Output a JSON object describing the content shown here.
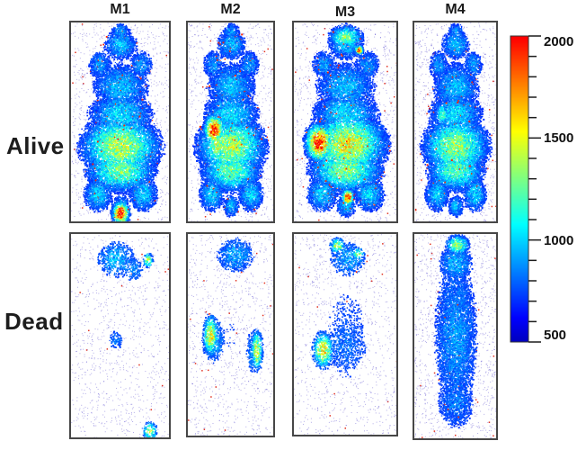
{
  "figure": {
    "columns": [
      "M1",
      "M2",
      "M3",
      "M4"
    ],
    "rows": [
      "Alive",
      "Dead"
    ]
  },
  "chart_data": {
    "type": "heatmap",
    "title": "",
    "description": "Whole-body speckled intensity heatmaps of four mice (M1-M4) imaged alive (top row, strong signal: blue body, green/yellow abdomen, red hotspots) and dead (bottom row, sparse blue speckle with small green foci), jet colormap",
    "colorbar": {
      "min": 500,
      "max": 2000,
      "major_ticks": [
        2000,
        1500,
        1000,
        500
      ],
      "minor_tick_step": 100,
      "labels": [
        "2000",
        "1500",
        "1000",
        "500"
      ],
      "colormap": "jet",
      "top_color": "#f42000",
      "bottom_color": "#1a1ae6"
    },
    "panels": [
      {
        "id": "alive-m1",
        "row": "Alive",
        "col": "M1",
        "dots": 26000,
        "threshold": 0.13,
        "bg_speck": 0.05,
        "red_speck": 0.0012,
        "hot_speck": 0.012,
        "fields": [
          [
            0.5,
            0.045,
            0.11,
            0.05,
            0.26
          ],
          [
            0.5,
            0.11,
            0.18,
            0.08,
            0.3
          ],
          [
            0.29,
            0.21,
            0.13,
            0.08,
            0.26
          ],
          [
            0.71,
            0.21,
            0.13,
            0.08,
            0.26
          ],
          [
            0.5,
            0.32,
            0.3,
            0.13,
            0.3
          ],
          [
            0.5,
            0.46,
            0.33,
            0.12,
            0.34
          ],
          [
            0.27,
            0.86,
            0.15,
            0.09,
            0.33
          ],
          [
            0.73,
            0.86,
            0.15,
            0.09,
            0.33
          ],
          [
            0.5,
            0.92,
            0.1,
            0.06,
            0.3
          ],
          [
            0.5,
            0.62,
            0.36,
            0.14,
            0.6
          ],
          [
            0.5,
            0.74,
            0.32,
            0.1,
            0.52
          ],
          [
            0.5,
            0.955,
            0.075,
            0.05,
            1.0
          ]
        ]
      },
      {
        "id": "alive-m2",
        "row": "Alive",
        "col": "M2",
        "dots": 24000,
        "threshold": 0.13,
        "bg_speck": 0.05,
        "red_speck": 0.0012,
        "hot_speck": 0.012,
        "fields": [
          [
            0.5,
            0.045,
            0.11,
            0.05,
            0.26
          ],
          [
            0.5,
            0.11,
            0.18,
            0.08,
            0.3
          ],
          [
            0.29,
            0.21,
            0.13,
            0.08,
            0.26
          ],
          [
            0.71,
            0.21,
            0.13,
            0.08,
            0.26
          ],
          [
            0.5,
            0.32,
            0.3,
            0.13,
            0.3
          ],
          [
            0.5,
            0.46,
            0.33,
            0.12,
            0.34
          ],
          [
            0.27,
            0.86,
            0.15,
            0.09,
            0.33
          ],
          [
            0.73,
            0.86,
            0.15,
            0.09,
            0.33
          ],
          [
            0.5,
            0.92,
            0.1,
            0.06,
            0.3
          ],
          [
            0.5,
            0.62,
            0.36,
            0.14,
            0.58
          ],
          [
            0.5,
            0.74,
            0.32,
            0.1,
            0.5
          ],
          [
            0.3,
            0.535,
            0.1,
            0.065,
            1.0
          ],
          [
            0.34,
            0.61,
            0.13,
            0.09,
            0.62
          ]
        ]
      },
      {
        "id": "alive-m3",
        "row": "Alive",
        "col": "M3",
        "dots": 28000,
        "threshold": 0.13,
        "bg_speck": 0.05,
        "red_speck": 0.0015,
        "hot_speck": 0.016,
        "fields": [
          [
            0.5,
            0.045,
            0.11,
            0.05,
            0.26
          ],
          [
            0.5,
            0.11,
            0.18,
            0.08,
            0.3
          ],
          [
            0.29,
            0.21,
            0.13,
            0.08,
            0.26
          ],
          [
            0.71,
            0.21,
            0.13,
            0.08,
            0.26
          ],
          [
            0.5,
            0.32,
            0.3,
            0.13,
            0.3
          ],
          [
            0.5,
            0.46,
            0.33,
            0.12,
            0.34
          ],
          [
            0.27,
            0.86,
            0.15,
            0.09,
            0.33
          ],
          [
            0.73,
            0.86,
            0.15,
            0.09,
            0.33
          ],
          [
            0.5,
            0.92,
            0.1,
            0.06,
            0.3
          ],
          [
            0.52,
            0.61,
            0.33,
            0.145,
            0.66
          ],
          [
            0.5,
            0.74,
            0.32,
            0.1,
            0.55
          ],
          [
            0.24,
            0.6,
            0.115,
            0.08,
            1.0
          ],
          [
            0.52,
            0.875,
            0.05,
            0.035,
            1.0
          ],
          [
            0.5,
            0.07,
            0.15,
            0.055,
            0.52
          ],
          [
            0.63,
            0.135,
            0.035,
            0.02,
            1.0
          ]
        ]
      },
      {
        "id": "alive-m4",
        "row": "Alive",
        "col": "M4",
        "dots": 23000,
        "threshold": 0.13,
        "bg_speck": 0.05,
        "red_speck": 0.0012,
        "hot_speck": 0.01,
        "fields": [
          [
            0.5,
            0.045,
            0.11,
            0.05,
            0.26
          ],
          [
            0.5,
            0.11,
            0.18,
            0.08,
            0.3
          ],
          [
            0.29,
            0.21,
            0.13,
            0.08,
            0.26
          ],
          [
            0.71,
            0.21,
            0.13,
            0.08,
            0.26
          ],
          [
            0.5,
            0.32,
            0.3,
            0.13,
            0.3
          ],
          [
            0.5,
            0.46,
            0.33,
            0.12,
            0.34
          ],
          [
            0.27,
            0.86,
            0.15,
            0.09,
            0.33
          ],
          [
            0.73,
            0.86,
            0.15,
            0.09,
            0.33
          ],
          [
            0.5,
            0.92,
            0.1,
            0.06,
            0.3
          ],
          [
            0.5,
            0.62,
            0.36,
            0.14,
            0.56
          ],
          [
            0.5,
            0.74,
            0.32,
            0.1,
            0.48
          ],
          [
            0.33,
            0.46,
            0.07,
            0.05,
            0.5
          ]
        ]
      },
      {
        "id": "dead-m1",
        "row": "Dead",
        "col": "M1",
        "dots": 14000,
        "threshold": 0.15,
        "bg_speck": 0.07,
        "red_speck": 0.0012,
        "hot_speck": 0.002,
        "fields": [
          [
            0.45,
            0.12,
            0.22,
            0.1,
            0.3
          ],
          [
            0.63,
            0.17,
            0.12,
            0.07,
            0.26
          ],
          [
            0.78,
            0.125,
            0.05,
            0.035,
            0.58
          ],
          [
            0.5,
            0.5,
            0.38,
            0.42,
            0.11
          ],
          [
            0.45,
            0.52,
            0.1,
            0.06,
            0.22
          ],
          [
            0.8,
            0.965,
            0.07,
            0.04,
            0.6
          ]
        ]
      },
      {
        "id": "dead-m2",
        "row": "Dead",
        "col": "M2",
        "dots": 15000,
        "threshold": 0.15,
        "bg_speck": 0.07,
        "red_speck": 0.0012,
        "hot_speck": 0.002,
        "fields": [
          [
            0.55,
            0.1,
            0.25,
            0.1,
            0.28
          ],
          [
            0.5,
            0.5,
            0.38,
            0.44,
            0.12
          ],
          [
            0.26,
            0.5,
            0.08,
            0.09,
            0.7
          ],
          [
            0.29,
            0.52,
            0.15,
            0.13,
            0.3
          ],
          [
            0.8,
            0.575,
            0.06,
            0.09,
            0.66
          ],
          [
            0.78,
            0.58,
            0.12,
            0.13,
            0.28
          ]
        ]
      },
      {
        "id": "dead-m3",
        "row": "Dead",
        "col": "M3",
        "dots": 16000,
        "threshold": 0.15,
        "bg_speck": 0.07,
        "red_speck": 0.0012,
        "hot_speck": 0.002,
        "fields": [
          [
            0.42,
            0.055,
            0.07,
            0.035,
            0.6
          ],
          [
            0.62,
            0.095,
            0.06,
            0.03,
            0.52
          ],
          [
            0.52,
            0.12,
            0.2,
            0.1,
            0.28
          ],
          [
            0.28,
            0.575,
            0.09,
            0.08,
            0.7
          ],
          [
            0.5,
            0.55,
            0.3,
            0.2,
            0.2
          ],
          [
            0.5,
            0.5,
            0.38,
            0.45,
            0.15
          ]
        ]
      },
      {
        "id": "dead-m4",
        "row": "Dead",
        "col": "M4",
        "dots": 22000,
        "threshold": 0.14,
        "bg_speck": 0.06,
        "red_speck": 0.0012,
        "hot_speck": 0.002,
        "fields": [
          [
            0.52,
            0.05,
            0.13,
            0.045,
            0.55
          ],
          [
            0.5,
            0.14,
            0.22,
            0.1,
            0.3
          ],
          [
            0.5,
            0.5,
            0.3,
            0.44,
            0.26
          ],
          [
            0.5,
            0.82,
            0.28,
            0.16,
            0.22
          ]
        ]
      }
    ]
  }
}
